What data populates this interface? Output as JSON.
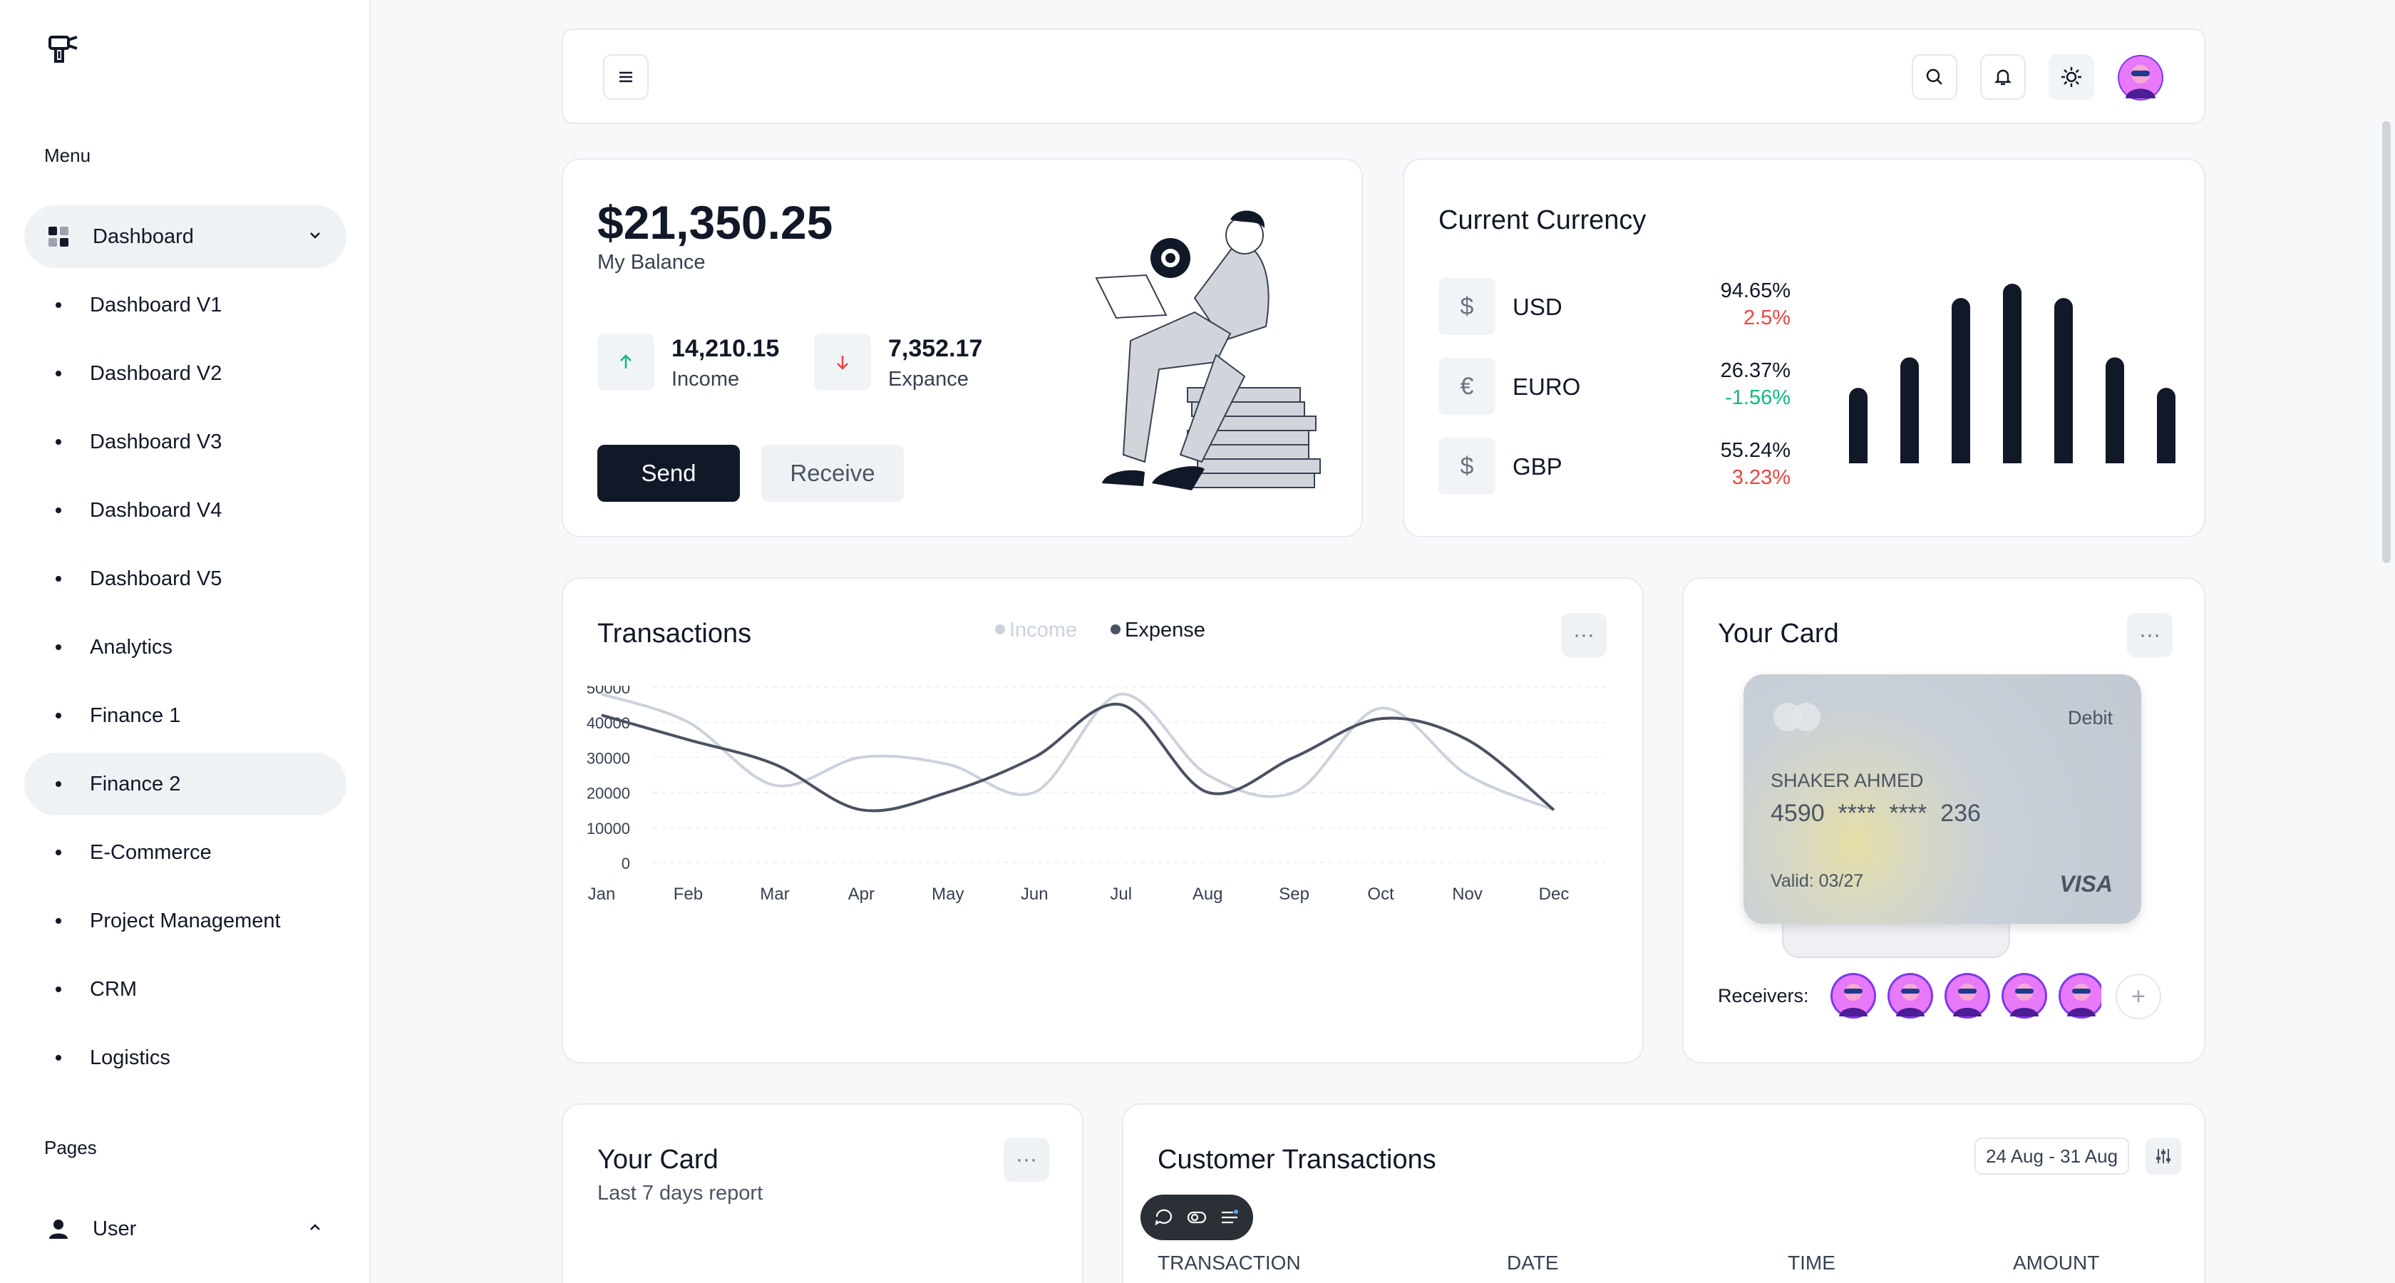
{
  "sidebar": {
    "menu_label": "Menu",
    "pages_label": "Pages",
    "items": [
      {
        "label": "Dashboard"
      },
      {
        "label": "Dashboard V1"
      },
      {
        "label": "Dashboard V2"
      },
      {
        "label": "Dashboard V3"
      },
      {
        "label": "Dashboard V4"
      },
      {
        "label": "Dashboard V5"
      },
      {
        "label": "Analytics"
      },
      {
        "label": "Finance 1"
      },
      {
        "label": "Finance 2"
      },
      {
        "label": "E-Commerce"
      },
      {
        "label": "Project Management"
      },
      {
        "label": "CRM"
      },
      {
        "label": "Logistics"
      }
    ],
    "user_label": "User"
  },
  "balance": {
    "amount": "$21,350.25",
    "label": "My Balance",
    "income_value": "14,210.15",
    "income_label": "Income",
    "expense_value": "7,352.17",
    "expense_label": "Expance",
    "send_label": "Send",
    "receive_label": "Receive"
  },
  "currency": {
    "title": "Current Currency",
    "rows": [
      {
        "symbol": "$",
        "name": "USD",
        "pct": "94.65%",
        "change": "2.5%",
        "change_color": "#ef4444"
      },
      {
        "symbol": "€",
        "name": "EURO",
        "pct": "26.37%",
        "change": "-1.56%",
        "change_color": "#10b981"
      },
      {
        "symbol": "$",
        "name": "GBP",
        "pct": "55.24%",
        "change": "3.23%",
        "change_color": "#ef4444"
      }
    ],
    "bars": [
      0.42,
      0.59,
      0.92,
      1.0,
      0.92,
      0.59,
      0.42
    ]
  },
  "transactions": {
    "title": "Transactions",
    "legend_income": "Income",
    "legend_expense": "Expense",
    "more_label": "···"
  },
  "chart_data": {
    "type": "line",
    "categories": [
      "Jan",
      "Feb",
      "Mar",
      "Apr",
      "May",
      "Jun",
      "Jul",
      "Aug",
      "Sep",
      "Oct",
      "Nov",
      "Dec"
    ],
    "ylim": [
      0,
      50000
    ],
    "yticks": [
      "50000",
      "40000",
      "30000",
      "20000",
      "10000",
      "0"
    ],
    "series": [
      {
        "name": "Income",
        "color": "#cbd2db",
        "values": [
          48000,
          40000,
          22000,
          30000,
          28000,
          20000,
          48000,
          25000,
          20000,
          44000,
          25000,
          15000
        ]
      },
      {
        "name": "Expense",
        "color": "#4a5162",
        "values": [
          42000,
          35000,
          28000,
          15000,
          20000,
          30000,
          45000,
          20000,
          30000,
          41000,
          35000,
          15000
        ]
      }
    ]
  },
  "your_card": {
    "title": "Your Card",
    "more_label": "···",
    "card_type": "Debit",
    "holder": "SHAKER AHMED",
    "number": "4590  ****  ****  236",
    "valid": "Valid: 03/27",
    "brand": "VISA",
    "receivers_label": "Receivers:",
    "add_label": "+"
  },
  "report": {
    "title": "Your Card",
    "subtitle": "Last 7 days report",
    "more_label": "···"
  },
  "customer": {
    "title": "Customer Transactions",
    "date_range": "24 Aug - 31 Aug",
    "columns": [
      "TRANSACTION",
      "DATE",
      "TIME",
      "AMOUNT"
    ]
  }
}
